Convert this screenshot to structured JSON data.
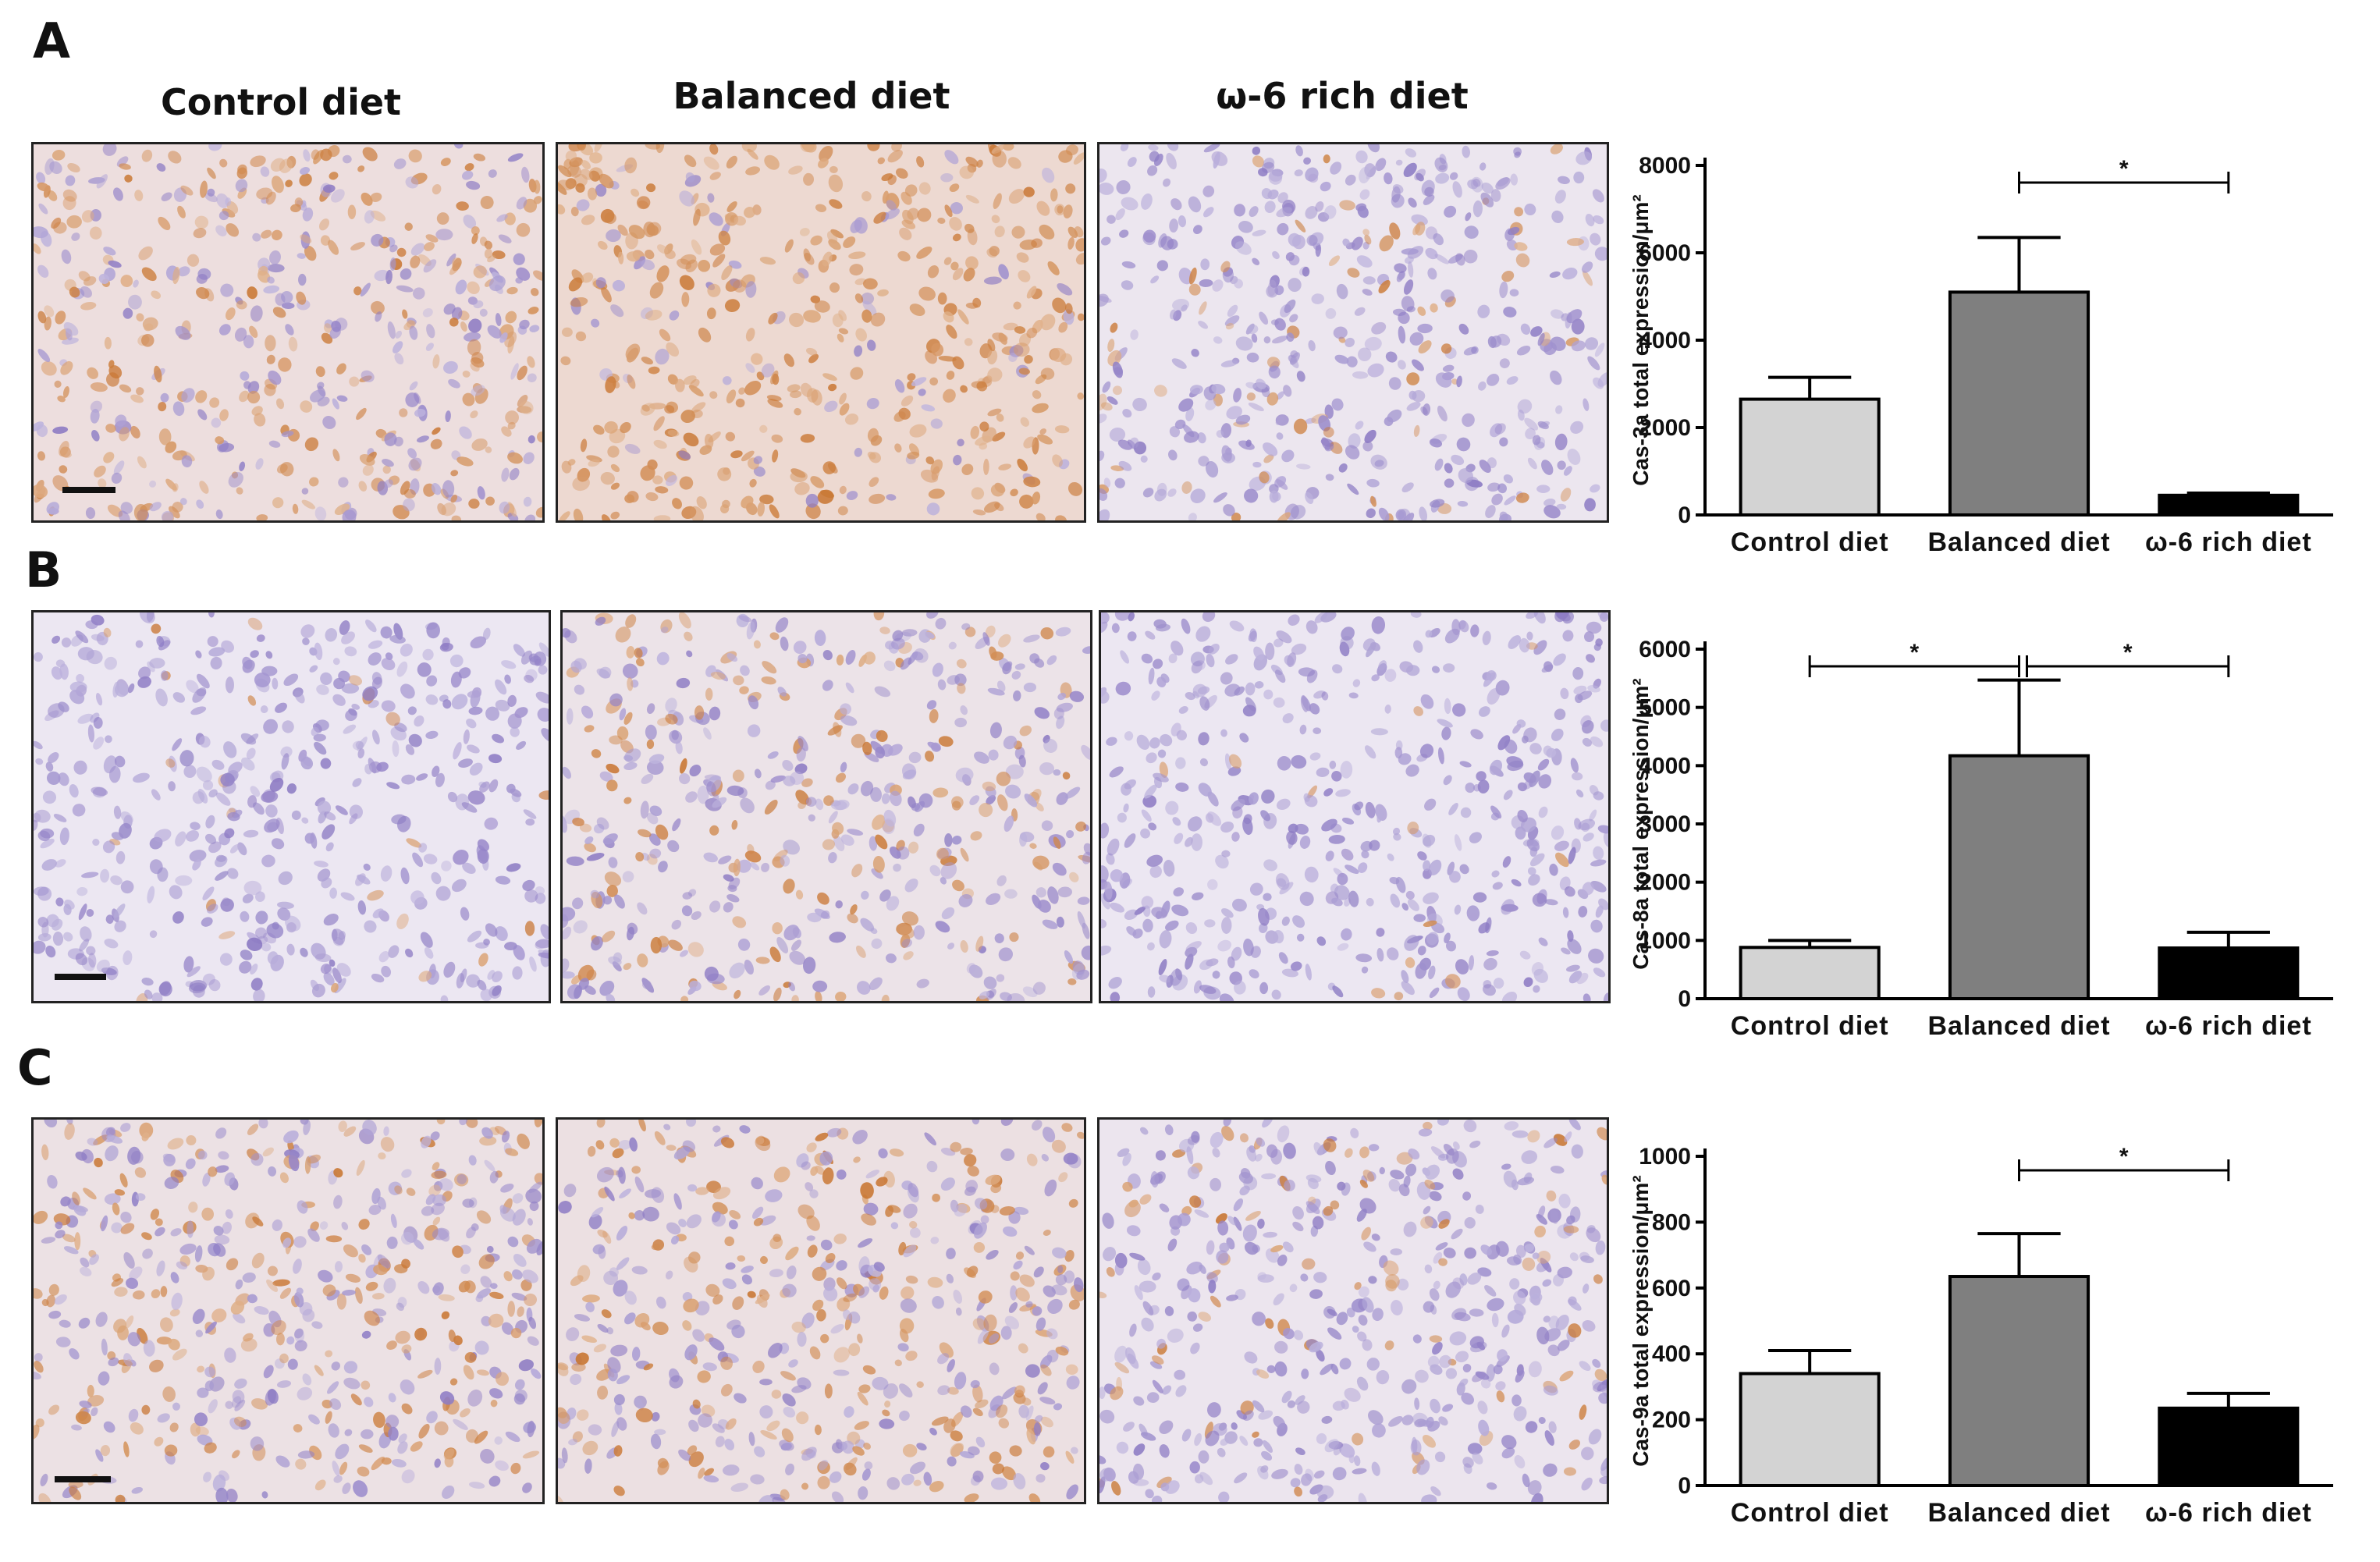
{
  "panels": [
    "A",
    "B",
    "C"
  ],
  "column_headers": [
    "Control diet",
    "Balanced diet",
    "ω-6 rich diet"
  ],
  "colors": {
    "control_bar": "#d3d3d3",
    "balanced_bar": "#7f7f7f",
    "omega6_bar": "#000000",
    "stain_brown": "#c8742f",
    "stain_hematoxylin": "#8b79c3"
  },
  "micrographs": [
    [
      {
        "stain": 0.55
      },
      {
        "stain": 0.85
      },
      {
        "stain": 0.12
      }
    ],
    [
      {
        "stain": 0.05
      },
      {
        "stain": 0.3
      },
      {
        "stain": 0.04
      }
    ],
    [
      {
        "stain": 0.4
      },
      {
        "stain": 0.45
      },
      {
        "stain": 0.15
      }
    ]
  ],
  "chart_data": [
    {
      "type": "bar",
      "panel": "A",
      "ylabel": "Cas-3a total expression/μm²",
      "categories": [
        "Control diet",
        "Balanced diet",
        "ω-6 rich diet"
      ],
      "values": [
        2650,
        5100,
        450
      ],
      "errors": [
        500,
        1250,
        50
      ],
      "ylim": [
        0,
        8000
      ],
      "yticks": [
        0,
        2000,
        4000,
        6000,
        8000
      ],
      "significance": [
        {
          "from": 1,
          "to": 2,
          "label": "*"
        }
      ]
    },
    {
      "type": "bar",
      "panel": "B",
      "ylabel": "Cas-8a total expression/μm²",
      "categories": [
        "Control diet",
        "Balanced diet",
        "ω-6 rich diet"
      ],
      "values": [
        880,
        4170,
        870
      ],
      "errors": [
        120,
        1300,
        270
      ],
      "ylim": [
        0,
        6000
      ],
      "yticks": [
        0,
        1000,
        2000,
        3000,
        4000,
        5000,
        6000
      ],
      "significance": [
        {
          "from": 0,
          "to": 1,
          "label": "*"
        },
        {
          "from": 1,
          "to": 2,
          "label": "*"
        }
      ]
    },
    {
      "type": "bar",
      "panel": "C",
      "ylabel": "Cas-9a total expression/μm²",
      "categories": [
        "Control diet",
        "Balanced diet",
        "ω-6 rich diet"
      ],
      "values": [
        340,
        635,
        235
      ],
      "errors": [
        70,
        130,
        45
      ],
      "ylim": [
        0,
        1000
      ],
      "yticks": [
        0,
        200,
        400,
        600,
        800,
        1000
      ],
      "significance": [
        {
          "from": 1,
          "to": 2,
          "label": "*"
        }
      ]
    }
  ]
}
